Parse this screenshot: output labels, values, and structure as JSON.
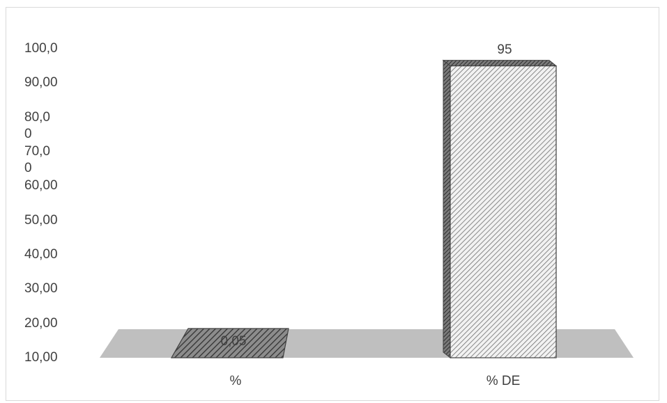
{
  "chart_data": {
    "type": "bar",
    "three_d": true,
    "categories": [
      "%",
      "% DE"
    ],
    "values": [
      0.05,
      95
    ],
    "data_labels": [
      "0,05",
      "95"
    ],
    "y_tick_labels": [
      "10,00",
      "20,00",
      "30,00",
      "40,00",
      "50,00",
      "60,00",
      "70,0\n0",
      "80,0\n0",
      "90,00",
      "100,0"
    ],
    "ylim": [
      10,
      100
    ],
    "grid": false,
    "legend": "none",
    "colors": {
      "floor": "#bfbfbf",
      "bar_front_1": "#808080",
      "bar_front_2": "#d9d9d9",
      "hatch_line": "#404040",
      "outline": "#404040"
    }
  }
}
